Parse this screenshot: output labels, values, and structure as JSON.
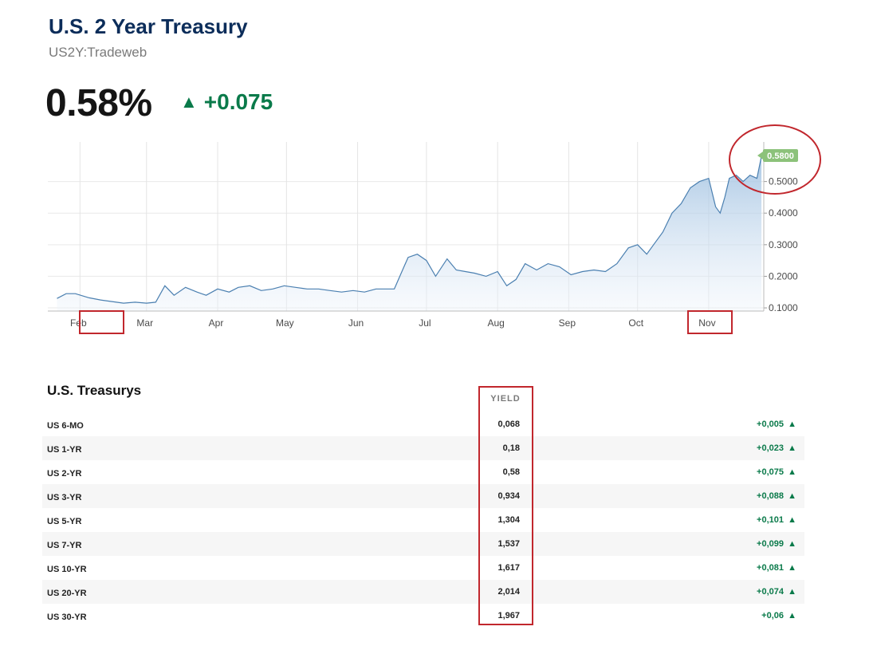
{
  "header": {
    "title": "U.S. 2 Year Treasury",
    "subtitle": "US2Y:Tradeweb",
    "price": "0.58%",
    "change": "+0.075",
    "up_icon": "triangle-up-icon"
  },
  "colors": {
    "title": "#0c2d5a",
    "positive": "#0a7a4a",
    "line": "#4a7fb0",
    "last_label_bg": "#8cc27a",
    "annotation": "#c1272d"
  },
  "chart_data": {
    "type": "area",
    "ylim": [
      0.09,
      0.6
    ],
    "yticks": [
      0.1,
      0.2,
      0.3,
      0.4,
      0.5
    ],
    "ytick_labels": [
      "0.1000",
      "0.2000",
      "0.3000",
      "0.4000",
      "0.5000"
    ],
    "x_months": [
      "Feb",
      "Mar",
      "Apr",
      "May",
      "Jun",
      "Jul",
      "Aug",
      "Sep",
      "Oct",
      "Nov"
    ],
    "last_value_label": "0.5800",
    "grid": true,
    "x": [
      "2020-01-22",
      "2020-01-26",
      "2020-01-30",
      "2020-02-05",
      "2020-02-10",
      "2020-02-15",
      "2020-02-20",
      "2020-02-25",
      "2020-03-01",
      "2020-03-05",
      "2020-03-09",
      "2020-03-13",
      "2020-03-18",
      "2020-03-23",
      "2020-03-27",
      "2020-04-01",
      "2020-04-06",
      "2020-04-10",
      "2020-04-15",
      "2020-04-20",
      "2020-04-25",
      "2020-04-30",
      "2020-05-05",
      "2020-05-10",
      "2020-05-15",
      "2020-05-20",
      "2020-05-25",
      "2020-05-30",
      "2020-06-04",
      "2020-06-09",
      "2020-06-14",
      "2020-06-17",
      "2020-06-20",
      "2020-06-23",
      "2020-06-27",
      "2020-07-01",
      "2020-07-05",
      "2020-07-10",
      "2020-07-14",
      "2020-07-18",
      "2020-07-22",
      "2020-07-27",
      "2020-08-01",
      "2020-08-05",
      "2020-08-09",
      "2020-08-13",
      "2020-08-18",
      "2020-08-23",
      "2020-08-28",
      "2020-09-02",
      "2020-09-07",
      "2020-09-12",
      "2020-09-17",
      "2020-09-22",
      "2020-09-27",
      "2020-10-01",
      "2020-10-05",
      "2020-10-08",
      "2020-10-12",
      "2020-10-16",
      "2020-10-20",
      "2020-10-24",
      "2020-10-28",
      "2020-11-01",
      "2020-11-04",
      "2020-11-06",
      "2020-11-08",
      "2020-11-10",
      "2020-11-13",
      "2020-11-16",
      "2020-11-19",
      "2020-11-22",
      "2020-11-24"
    ],
    "values": [
      0.13,
      0.145,
      0.145,
      0.132,
      0.125,
      0.12,
      0.115,
      0.118,
      0.115,
      0.118,
      0.17,
      0.14,
      0.165,
      0.15,
      0.14,
      0.16,
      0.15,
      0.165,
      0.17,
      0.155,
      0.16,
      0.17,
      0.165,
      0.16,
      0.16,
      0.155,
      0.15,
      0.155,
      0.15,
      0.16,
      0.16,
      0.16,
      0.21,
      0.26,
      0.27,
      0.25,
      0.2,
      0.255,
      0.22,
      0.215,
      0.21,
      0.2,
      0.215,
      0.17,
      0.19,
      0.24,
      0.22,
      0.24,
      0.23,
      0.205,
      0.215,
      0.22,
      0.215,
      0.24,
      0.29,
      0.3,
      0.27,
      0.3,
      0.34,
      0.4,
      0.43,
      0.48,
      0.5,
      0.51,
      0.42,
      0.4,
      0.45,
      0.51,
      0.52,
      0.5,
      0.52,
      0.51,
      0.58
    ]
  },
  "table": {
    "title": "U.S. Treasurys",
    "yield_header": "YIELD",
    "rows": [
      {
        "name": "US 6-MO",
        "yield": "0,068",
        "change": "+0,005"
      },
      {
        "name": "US 1-YR",
        "yield": "0,18",
        "change": "+0,023"
      },
      {
        "name": "US 2-YR",
        "yield": "0,58",
        "change": "+0,075"
      },
      {
        "name": "US 3-YR",
        "yield": "0,934",
        "change": "+0,088"
      },
      {
        "name": "US 5-YR",
        "yield": "1,304",
        "change": "+0,101"
      },
      {
        "name": "US 7-YR",
        "yield": "1,537",
        "change": "+0,099"
      },
      {
        "name": "US 10-YR",
        "yield": "1,617",
        "change": "+0,081"
      },
      {
        "name": "US 20-YR",
        "yield": "2,014",
        "change": "+0,074"
      },
      {
        "name": "US 30-YR",
        "yield": "1,967",
        "change": "+0,06"
      }
    ]
  }
}
